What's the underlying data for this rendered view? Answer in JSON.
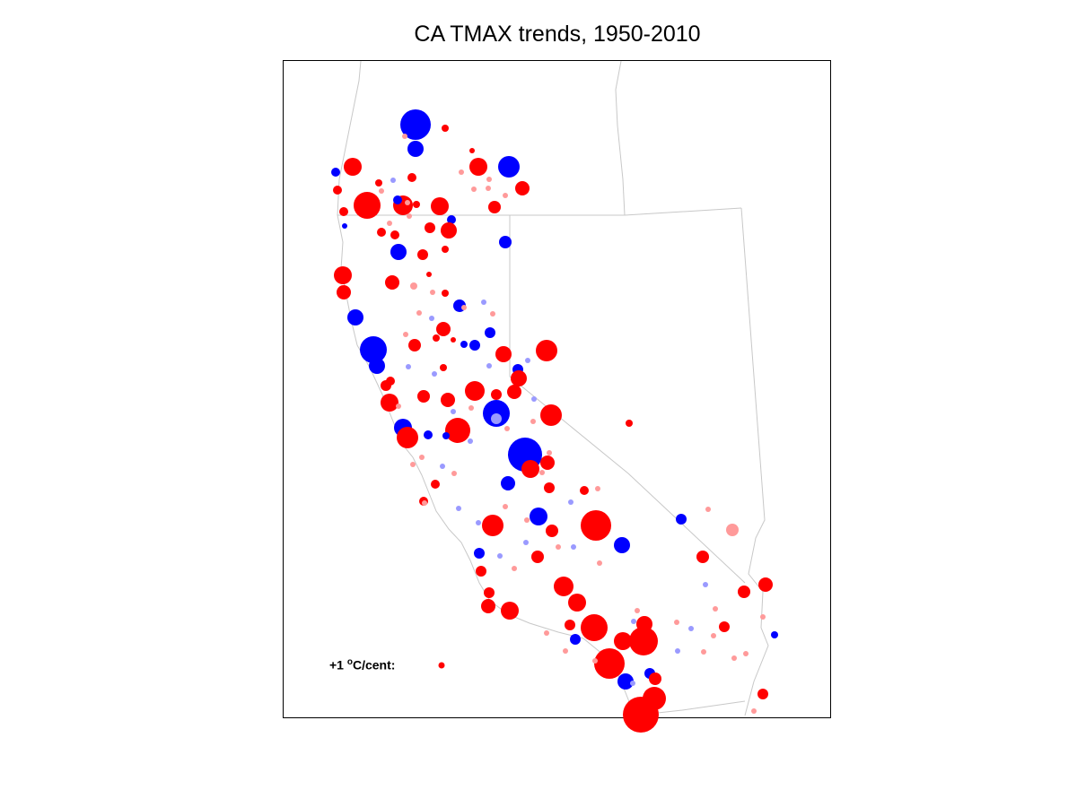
{
  "title": "CA TMAX trends, 1950-2010",
  "legend": {
    "prefix": "+1 ",
    "degree": "o",
    "suffix": "C/cent:",
    "trend": 1
  },
  "colors": {
    "warming_significant": "#ff0000",
    "warming_insignificant": "#ff9a9a",
    "cooling_significant": "#0000ff",
    "cooling_insignificant": "#9a9aff",
    "border": "#c8c8c8",
    "frame": "#000000"
  },
  "symbol_scale": "marker size proportional to trend magnitude"
}
